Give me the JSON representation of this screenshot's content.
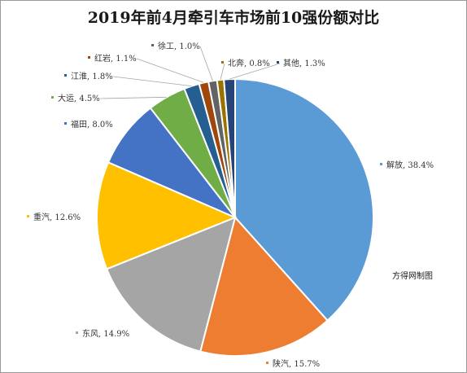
{
  "chart_data": {
    "type": "pie",
    "title": "2019年前4月牵引车市场前10强份额对比",
    "credit": "方得网制图",
    "slices": [
      {
        "label": "解放",
        "value": 38.4,
        "text": "解放, 38.4%",
        "color": "#5b9bd5"
      },
      {
        "label": "陕汽",
        "value": 15.7,
        "text": "陕汽, 15.7%",
        "color": "#ed7d31"
      },
      {
        "label": "东风",
        "value": 14.9,
        "text": "东风, 14.9%",
        "color": "#a5a5a5"
      },
      {
        "label": "重汽",
        "value": 12.6,
        "text": "重汽, 12.6%",
        "color": "#ffc000"
      },
      {
        "label": "福田",
        "value": 8.0,
        "text": "福田, 8.0%",
        "color": "#4472c4"
      },
      {
        "label": "大运",
        "value": 4.5,
        "text": "大运, 4.5%",
        "color": "#70ad47"
      },
      {
        "label": "江淮",
        "value": 1.8,
        "text": "江淮, 1.8%",
        "color": "#255e91"
      },
      {
        "label": "红岩",
        "value": 1.1,
        "text": "红岩, 1.1%",
        "color": "#9e480e"
      },
      {
        "label": "徐工",
        "value": 1.0,
        "text": "徐工, 1.0%",
        "color": "#636363"
      },
      {
        "label": "北奔",
        "value": 0.8,
        "text": "北奔, 0.8%",
        "color": "#997300"
      },
      {
        "label": "其他",
        "value": 1.3,
        "text": "其他, 1.3%",
        "color": "#264478"
      }
    ]
  }
}
